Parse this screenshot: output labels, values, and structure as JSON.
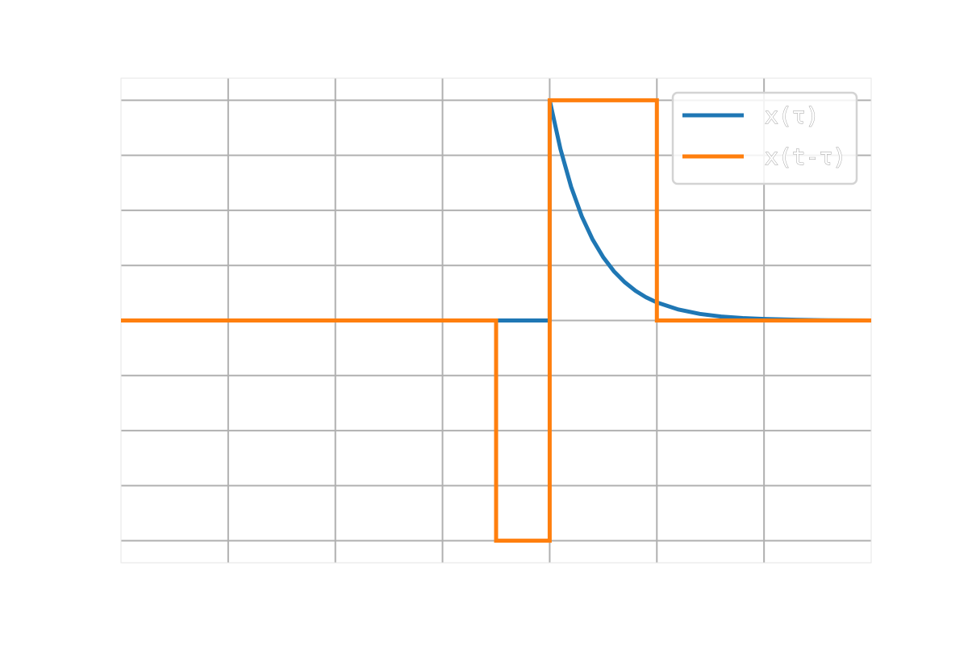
{
  "chart_data": {
    "type": "line",
    "title": "",
    "xlabel": "",
    "ylabel": "",
    "xlim": [
      -4,
      3
    ],
    "ylim": [
      -1.1,
      1.1
    ],
    "x_gridlines": [
      -3,
      -2,
      -1,
      0,
      1,
      2
    ],
    "y_gridlines": [
      -1.0,
      -0.75,
      -0.5,
      -0.25,
      0.0,
      0.25,
      0.5,
      0.75,
      1.0
    ],
    "grid": true,
    "legend_position": "top-right",
    "series": [
      {
        "name": "x(τ)",
        "color": "#1f77b4",
        "description_type": "one-sided decaying exponential",
        "points": [
          [
            -4,
            0
          ],
          [
            0,
            0
          ],
          [
            0,
            1.0
          ],
          [
            0.1,
            0.779
          ],
          [
            0.2,
            0.607
          ],
          [
            0.3,
            0.472
          ],
          [
            0.4,
            0.368
          ],
          [
            0.5,
            0.287
          ],
          [
            0.6,
            0.223
          ],
          [
            0.7,
            0.174
          ],
          [
            0.8,
            0.135
          ],
          [
            0.9,
            0.105
          ],
          [
            1.0,
            0.082
          ],
          [
            1.2,
            0.05
          ],
          [
            1.4,
            0.03
          ],
          [
            1.6,
            0.018
          ],
          [
            1.8,
            0.011
          ],
          [
            2.0,
            0.007
          ],
          [
            2.3,
            0.003
          ],
          [
            2.6,
            0.001
          ],
          [
            3.0,
            0.0
          ]
        ]
      },
      {
        "name": "x(t-τ)",
        "color": "#ff7f0e",
        "points": [
          [
            -4,
            0
          ],
          [
            -0.5,
            0
          ],
          [
            -0.5,
            -1
          ],
          [
            0,
            -1
          ],
          [
            0,
            1
          ],
          [
            1,
            1
          ],
          [
            1,
            0
          ],
          [
            3,
            0
          ]
        ]
      }
    ]
  }
}
